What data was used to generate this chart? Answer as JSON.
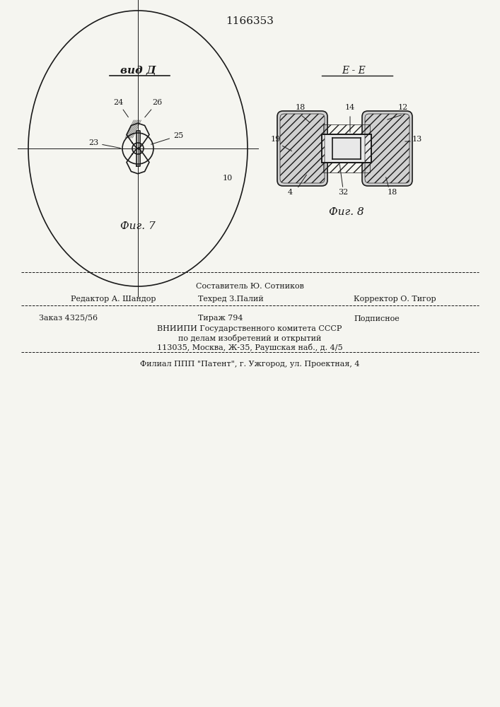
{
  "patent_number": "1166353",
  "background_color": "#f5f5f0",
  "line_color": "#1a1a1a",
  "hatch_color": "#1a1a1a",
  "fig7_label": "Фиг. 7",
  "fig8_label": "Фиг. 8",
  "view_label": "вид Д",
  "section_label": "E - E",
  "footer_lines": [
    "Составитель Ю. Сотников",
    "Редактор А. Шандор       Техред З.Палий                Корректор О. Тигор",
    "Заказ 4325/56            Тираж 794                   Подписное",
    "ВНИИПИ Государственного комитета СССР",
    "по делам изобретений и открытий",
    "113035, Москва, Ж-35, Раушская наб., д. 4/5",
    "Филиал ППП \"Патент\", г. Ужгород, ул. Проектная, 4"
  ]
}
